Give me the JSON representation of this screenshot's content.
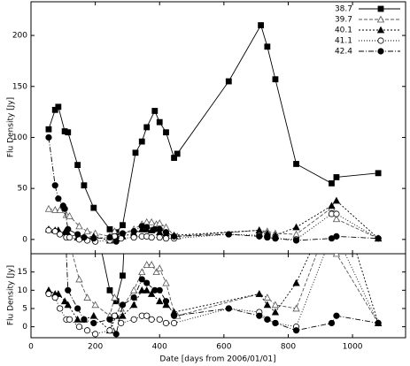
{
  "chart_data": [
    {
      "type": "line",
      "ylabel": "Flu Density [Jy]",
      "ylim": [
        -14,
        233
      ],
      "yticks": [
        0,
        50,
        100,
        150,
        200
      ],
      "series": [
        {
          "name": "38.7",
          "color": "#000",
          "dash": "",
          "marker": "square-filled",
          "x": [
            55,
            75,
            85,
            105,
            115,
            145,
            165,
            195,
            245,
            265,
            285,
            325,
            345,
            360,
            385,
            400,
            420,
            445,
            455,
            615,
            715,
            735,
            760,
            825,
            935,
            950,
            1080
          ],
          "values": [
            108,
            127,
            130,
            106,
            105,
            73,
            53,
            31,
            10,
            7,
            14,
            85,
            96,
            110,
            126,
            115,
            105,
            80,
            84,
            155,
            210,
            189,
            157,
            74,
            55,
            61,
            65
          ]
        },
        {
          "name": "39.7",
          "color": "#555",
          "dash": "4,2",
          "marker": "triangle-open",
          "x": [
            55,
            75,
            90,
            110,
            120,
            150,
            175,
            200,
            245,
            260,
            280,
            320,
            345,
            360,
            375,
            390,
            400,
            420,
            445,
            455,
            710,
            735,
            760,
            825,
            935,
            950,
            1080
          ],
          "values": [
            30,
            29,
            29,
            24,
            23,
            13,
            8,
            6,
            3,
            8,
            5,
            10,
            15,
            17,
            17,
            15,
            16,
            12,
            4,
            3,
            9,
            8,
            6,
            5,
            31,
            20,
            1
          ]
        },
        {
          "name": "40.1",
          "color": "#000",
          "dash": "2,2",
          "marker": "triangle-filled",
          "x": [
            55,
            75,
            85,
            105,
            115,
            145,
            165,
            195,
            245,
            265,
            285,
            320,
            345,
            360,
            375,
            400,
            420,
            445,
            710,
            735,
            760,
            825,
            935,
            950,
            1080
          ],
          "values": [
            10,
            9,
            9,
            7,
            6,
            2,
            2,
            3,
            -1,
            3,
            3,
            6,
            10,
            10,
            9,
            7,
            6,
            4,
            9,
            6,
            4,
            12,
            33,
            38,
            1
          ]
        },
        {
          "name": "41.1",
          "color": "#000",
          "dash": "1,2",
          "marker": "circle-open",
          "x": [
            55,
            75,
            90,
            110,
            120,
            150,
            175,
            200,
            245,
            260,
            280,
            320,
            345,
            360,
            375,
            400,
            420,
            445,
            615,
            710,
            735,
            760,
            825,
            935,
            950,
            1080
          ],
          "values": [
            9,
            8,
            5,
            2,
            2,
            0,
            -1,
            -2,
            -1,
            3,
            1,
            2,
            3,
            3,
            2,
            2,
            1,
            1,
            5,
            4,
            2,
            1,
            0,
            25,
            25,
            1
          ]
        },
        {
          "name": "42.4",
          "color": "#000",
          "dash": "6,2,1,2",
          "marker": "circle-filled",
          "x": [
            55,
            75,
            85,
            100,
            105,
            115,
            145,
            165,
            195,
            245,
            265,
            285,
            320,
            345,
            360,
            385,
            400,
            420,
            445,
            615,
            710,
            735,
            760,
            825,
            935,
            950,
            1080
          ],
          "values": [
            100,
            53,
            40,
            33,
            30,
            10,
            5,
            2,
            1,
            2,
            -2,
            6,
            8,
            13,
            12,
            10,
            10,
            7,
            3,
            5,
            3,
            2,
            1,
            -1,
            1,
            3,
            1
          ]
        }
      ]
    },
    {
      "type": "line",
      "ylabel": "Flu Density [Jy]",
      "xlabel": "Date [days from 2006/01/01]",
      "ylim": [
        -3,
        20
      ],
      "yticks": [
        0,
        5,
        10,
        15
      ],
      "xlim": [
        0,
        1165
      ],
      "xticks": [
        0,
        200,
        400,
        600,
        800,
        1000
      ]
    }
  ]
}
